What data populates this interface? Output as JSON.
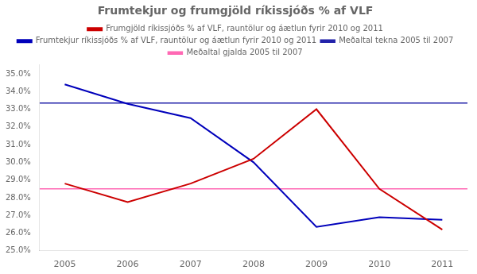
{
  "chart_data": {
    "type": "line",
    "title": "Frumtekjur og frumgjöld ríkissjóðs % af VLF",
    "x": [
      2005,
      2006,
      2007,
      2008,
      2009,
      2010,
      2011
    ],
    "series": [
      {
        "name": "Frumgjöld ríkissjóðs % af VLF, rauntölur og áætlun fyrir 2010 og 2011",
        "color": "#cc0000",
        "values": [
          28.8,
          27.75,
          28.8,
          30.2,
          33.0,
          28.5,
          26.2
        ]
      },
      {
        "name": "Frumtekjur ríkissjóðs % af VLF, rauntölur og áætlun fyrir 2010 og 2011",
        "color": "#0000bb",
        "values": [
          34.4,
          33.3,
          32.5,
          30.0,
          26.35,
          26.9,
          26.75
        ]
      }
    ],
    "hlines": [
      {
        "name": "Meðaltal tekna 2005 til 2007",
        "color": "#2222aa",
        "value": 33.35
      },
      {
        "name": "Meðaltal gjalda 2005 til 2007",
        "color": "#ff69b4",
        "value": 28.5
      }
    ],
    "xlim": [
      2004.6,
      2011.4
    ],
    "xticks": [
      2005,
      2006,
      2007,
      2008,
      2009,
      2010,
      2011
    ],
    "ylim": [
      25.0,
      35.5
    ],
    "yticks": [
      {
        "value": 25.0,
        "label": "25.0%"
      },
      {
        "value": 26.0,
        "label": "26.0%"
      },
      {
        "value": 27.0,
        "label": "27.0%"
      },
      {
        "value": 28.0,
        "label": "28.0%"
      },
      {
        "value": 29.0,
        "label": "29.0%"
      },
      {
        "value": 30.0,
        "label": "30.0%"
      },
      {
        "value": 31.0,
        "label": "31.0%"
      },
      {
        "value": 32.0,
        "label": "32.0%"
      },
      {
        "value": 33.0,
        "label": "33.0%"
      },
      {
        "value": 34.0,
        "label": "34.0%"
      },
      {
        "value": 35.0,
        "label": "35.0%"
      }
    ],
    "grid": false,
    "legend": "top"
  }
}
